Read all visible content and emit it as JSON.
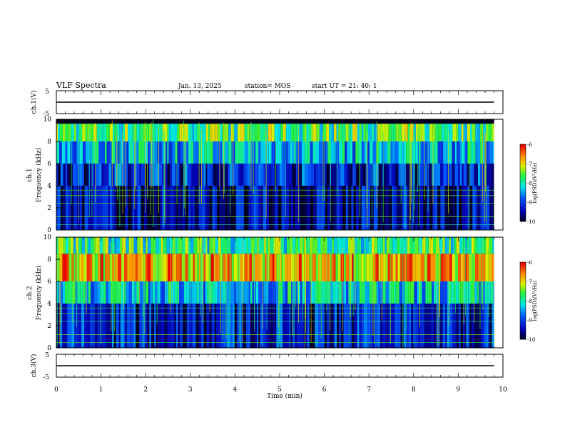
{
  "header": {
    "title": "VLF Spectra",
    "date": "Jan. 13, 2025",
    "station": "station= MOS",
    "start": "start UT = 21: 40: 1"
  },
  "chart_data": [
    {
      "type": "line",
      "name": "ch1_voltage",
      "ylabel": "ch.1(V)",
      "ylim": [
        -5,
        5
      ],
      "y_ticks": [
        "5",
        "-5"
      ],
      "x": [
        0,
        9.8
      ],
      "values": [
        0,
        0
      ]
    },
    {
      "type": "heatmap",
      "name": "ch1_spectrogram",
      "ylabel_line1": "ch.1",
      "ylabel_line2": "Frequency (kHz)",
      "xlim": [
        0,
        10
      ],
      "ylim": [
        0,
        10
      ],
      "y_ticks": [
        "0",
        "2",
        "4",
        "6",
        "8",
        "10"
      ],
      "data_extent_min": 9.8,
      "colorbar": {
        "label": "log(PSD)(V²/Hz)",
        "ticks": [
          "-6",
          "-7",
          "-8",
          "-9",
          "-10"
        ],
        "range": [
          -10,
          -6
        ]
      },
      "band_levels": [
        {
          "freq": [
            8.0,
            9.6
          ],
          "level": -7.7
        },
        {
          "freq": [
            6.0,
            8.0
          ],
          "level": -8.4
        },
        {
          "freq": [
            4.0,
            6.0
          ],
          "level": -9.2
        },
        {
          "freq": [
            0.0,
            4.0
          ],
          "level": -9.6
        }
      ]
    },
    {
      "type": "heatmap",
      "name": "ch2_spectrogram",
      "ylabel_line1": "ch.2",
      "ylabel_line2": "Frequency (kHz)",
      "xlim": [
        0,
        10
      ],
      "ylim": [
        0,
        10
      ],
      "y_ticks": [
        "0",
        "2",
        "4",
        "6",
        "8",
        "10"
      ],
      "data_extent_min": 9.8,
      "colorbar": {
        "label": "log(PSD)(V²/Hz)",
        "ticks": [
          "-6",
          "-7",
          "-8",
          "-9",
          "-10"
        ],
        "range": [
          -10,
          -6
        ]
      },
      "band_levels": [
        {
          "freq": [
            8.5,
            10.0
          ],
          "level": -7.8
        },
        {
          "freq": [
            6.0,
            8.5
          ],
          "level": -6.8
        },
        {
          "freq": [
            4.0,
            6.0
          ],
          "level": -8.3
        },
        {
          "freq": [
            0.0,
            4.0
          ],
          "level": -9.3
        }
      ]
    },
    {
      "type": "line",
      "name": "ch3_voltage",
      "ylabel": "ch.3(V)",
      "ylim": [
        -5,
        5
      ],
      "y_ticks": [
        "5",
        "-5"
      ],
      "x": [
        0,
        9.8
      ],
      "values": [
        0,
        0
      ]
    }
  ],
  "x_axis": {
    "label": "Time (min)",
    "ticks": [
      "0",
      "1",
      "2",
      "3",
      "4",
      "5",
      "6",
      "7",
      "8",
      "9",
      "10"
    ],
    "range": [
      0,
      10
    ]
  }
}
